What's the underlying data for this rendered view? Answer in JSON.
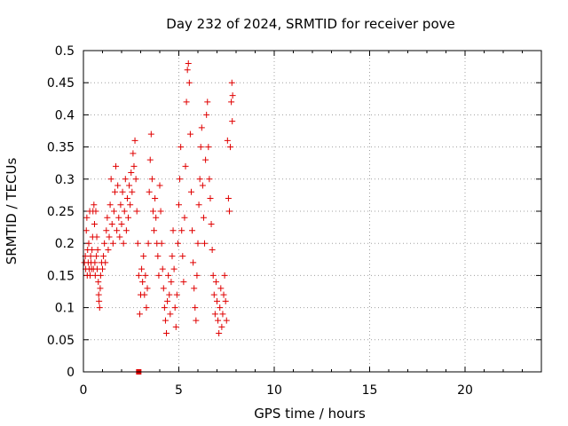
{
  "chart_data": {
    "type": "scatter",
    "title": "Day 232 of 2024, SRMTID for receiver pove",
    "xlabel": "GPS time / hours",
    "ylabel": "SRMTID / TECUs",
    "xlim": [
      0,
      24
    ],
    "ylim": [
      0,
      0.5
    ],
    "xticks": [
      0,
      5,
      10,
      15,
      20
    ],
    "yticks": [
      0,
      0.05,
      0.1,
      0.15,
      0.2,
      0.25,
      0.3,
      0.35,
      0.4,
      0.45,
      0.5
    ],
    "grid": true,
    "marker": "plus",
    "color": "#e00000",
    "series": [
      {
        "points": [
          [
            0.05,
            0.17
          ],
          [
            0.1,
            0.18
          ],
          [
            0.12,
            0.16
          ],
          [
            0.15,
            0.22
          ],
          [
            0.18,
            0.24
          ],
          [
            0.2,
            0.15
          ],
          [
            0.22,
            0.19
          ],
          [
            0.25,
            0.17
          ],
          [
            0.28,
            0.2
          ],
          [
            0.3,
            0.16
          ],
          [
            0.33,
            0.25
          ],
          [
            0.35,
            0.15
          ],
          [
            0.38,
            0.18
          ],
          [
            0.4,
            0.17
          ],
          [
            0.42,
            0.16
          ],
          [
            0.45,
            0.19
          ],
          [
            0.48,
            0.21
          ],
          [
            0.5,
            0.25
          ],
          [
            0.52,
            0.16
          ],
          [
            0.55,
            0.26
          ],
          [
            0.58,
            0.23
          ],
          [
            0.6,
            0.17
          ],
          [
            0.62,
            0.15
          ],
          [
            0.65,
            0.25
          ],
          [
            0.68,
            0.18
          ],
          [
            0.7,
            0.21
          ],
          [
            0.72,
            0.16
          ],
          [
            0.75,
            0.19
          ],
          [
            0.78,
            0.14
          ],
          [
            0.8,
            0.12
          ],
          [
            0.82,
            0.11
          ],
          [
            0.85,
            0.1
          ],
          [
            0.88,
            0.13
          ],
          [
            0.9,
            0.15
          ],
          [
            0.95,
            0.17
          ],
          [
            1.0,
            0.16
          ],
          [
            1.05,
            0.18
          ],
          [
            1.1,
            0.2
          ],
          [
            1.15,
            0.17
          ],
          [
            1.2,
            0.22
          ],
          [
            1.25,
            0.24
          ],
          [
            1.3,
            0.19
          ],
          [
            1.35,
            0.21
          ],
          [
            1.4,
            0.26
          ],
          [
            1.45,
            0.3
          ],
          [
            1.5,
            0.23
          ],
          [
            1.55,
            0.2
          ],
          [
            1.6,
            0.25
          ],
          [
            1.65,
            0.28
          ],
          [
            1.7,
            0.32
          ],
          [
            1.75,
            0.22
          ],
          [
            1.8,
            0.29
          ],
          [
            1.85,
            0.24
          ],
          [
            1.9,
            0.21
          ],
          [
            1.95,
            0.26
          ],
          [
            2.0,
            0.23
          ],
          [
            2.05,
            0.28
          ],
          [
            2.1,
            0.2
          ],
          [
            2.15,
            0.25
          ],
          [
            2.2,
            0.3
          ],
          [
            2.25,
            0.22
          ],
          [
            2.3,
            0.27
          ],
          [
            2.35,
            0.24
          ],
          [
            2.4,
            0.29
          ],
          [
            2.45,
            0.26
          ],
          [
            2.5,
            0.31
          ],
          [
            2.55,
            0.28
          ],
          [
            2.6,
            0.34
          ],
          [
            2.65,
            0.32
          ],
          [
            2.7,
            0.36
          ],
          [
            2.75,
            0.3
          ],
          [
            2.8,
            0.25
          ],
          [
            2.85,
            0.2
          ],
          [
            2.9,
            0.15
          ],
          [
            2.95,
            0.09
          ],
          [
            3.0,
            0.12
          ],
          [
            3.05,
            0.16
          ],
          [
            3.1,
            0.14
          ],
          [
            3.15,
            0.18
          ],
          [
            3.2,
            0.12
          ],
          [
            3.25,
            0.15
          ],
          [
            3.3,
            0.1
          ],
          [
            3.35,
            0.13
          ],
          [
            3.4,
            0.2
          ],
          [
            3.45,
            0.28
          ],
          [
            3.5,
            0.33
          ],
          [
            3.55,
            0.37
          ],
          [
            3.6,
            0.3
          ],
          [
            3.65,
            0.25
          ],
          [
            3.7,
            0.22
          ],
          [
            3.75,
            0.27
          ],
          [
            3.8,
            0.24
          ],
          [
            3.85,
            0.2
          ],
          [
            3.9,
            0.18
          ],
          [
            3.95,
            0.15
          ],
          [
            4.0,
            0.29
          ],
          [
            4.05,
            0.25
          ],
          [
            4.1,
            0.2
          ],
          [
            4.15,
            0.16
          ],
          [
            4.2,
            0.13
          ],
          [
            4.25,
            0.1
          ],
          [
            4.3,
            0.08
          ],
          [
            4.35,
            0.06
          ],
          [
            4.4,
            0.11
          ],
          [
            4.45,
            0.15
          ],
          [
            4.5,
            0.12
          ],
          [
            4.55,
            0.09
          ],
          [
            4.6,
            0.14
          ],
          [
            4.65,
            0.18
          ],
          [
            4.7,
            0.22
          ],
          [
            4.75,
            0.16
          ],
          [
            4.8,
            0.1
          ],
          [
            4.85,
            0.07
          ],
          [
            4.9,
            0.12
          ],
          [
            4.95,
            0.2
          ],
          [
            5.0,
            0.26
          ],
          [
            5.05,
            0.3
          ],
          [
            5.1,
            0.35
          ],
          [
            5.15,
            0.22
          ],
          [
            5.2,
            0.18
          ],
          [
            5.25,
            0.14
          ],
          [
            5.3,
            0.24
          ],
          [
            5.35,
            0.32
          ],
          [
            5.4,
            0.42
          ],
          [
            5.45,
            0.47
          ],
          [
            5.5,
            0.48
          ],
          [
            5.55,
            0.45
          ],
          [
            5.6,
            0.37
          ],
          [
            5.65,
            0.28
          ],
          [
            5.7,
            0.22
          ],
          [
            5.75,
            0.17
          ],
          [
            5.8,
            0.13
          ],
          [
            5.85,
            0.1
          ],
          [
            5.9,
            0.08
          ],
          [
            5.95,
            0.15
          ],
          [
            6.0,
            0.2
          ],
          [
            6.05,
            0.26
          ],
          [
            6.1,
            0.3
          ],
          [
            6.15,
            0.35
          ],
          [
            6.2,
            0.38
          ],
          [
            6.25,
            0.29
          ],
          [
            6.3,
            0.24
          ],
          [
            6.35,
            0.2
          ],
          [
            6.4,
            0.33
          ],
          [
            6.45,
            0.4
          ],
          [
            6.5,
            0.42
          ],
          [
            6.55,
            0.35
          ],
          [
            6.6,
            0.3
          ],
          [
            6.65,
            0.27
          ],
          [
            6.7,
            0.23
          ],
          [
            6.75,
            0.19
          ],
          [
            6.8,
            0.15
          ],
          [
            6.85,
            0.12
          ],
          [
            6.9,
            0.09
          ],
          [
            6.95,
            0.14
          ],
          [
            7.0,
            0.11
          ],
          [
            7.05,
            0.08
          ],
          [
            7.1,
            0.06
          ],
          [
            7.15,
            0.1
          ],
          [
            7.2,
            0.13
          ],
          [
            7.25,
            0.07
          ],
          [
            7.3,
            0.09
          ],
          [
            7.35,
            0.12
          ],
          [
            7.4,
            0.15
          ],
          [
            7.45,
            0.11
          ],
          [
            7.5,
            0.08
          ],
          [
            7.55,
            0.36
          ],
          [
            7.6,
            0.27
          ],
          [
            7.65,
            0.25
          ],
          [
            7.7,
            0.35
          ],
          [
            7.75,
            0.42
          ],
          [
            7.78,
            0.45
          ],
          [
            7.8,
            0.39
          ],
          [
            7.82,
            0.43
          ]
        ]
      }
    ],
    "special_marks": [
      [
        2.9,
        0.0
      ]
    ]
  }
}
